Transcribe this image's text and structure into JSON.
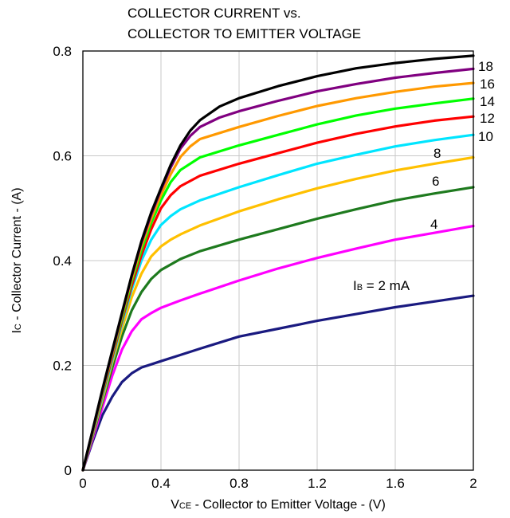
{
  "chart_data": {
    "type": "line",
    "title": [
      "COLLECTOR CURRENT vs.",
      "COLLECTOR TO EMITTER VOLTAGE"
    ],
    "xlabel": {
      "main": "V",
      "sub": "CE",
      "rest": " - Collector to Emitter Voltage - (V)"
    },
    "ylabel": {
      "main": "I",
      "sub": "C",
      "rest": " - Collector Current - (A)"
    },
    "xlim": [
      0,
      2
    ],
    "ylim": [
      0,
      0.8
    ],
    "xticks": [
      "0",
      "0.4",
      "0.8",
      "1.2",
      "1.6",
      "2"
    ],
    "xtick_values": [
      0,
      0.4,
      0.8,
      1.2,
      1.6,
      2
    ],
    "yticks": [
      "0",
      "0.2",
      "0.4",
      "0.6",
      "0.8"
    ],
    "ytick_values": [
      0,
      0.2,
      0.4,
      0.6,
      0.8
    ],
    "grid": true,
    "series": [
      {
        "name": "I_B = 2 mA",
        "label": {
          "main": "I",
          "sub": "B",
          "rest": " = 2 mA"
        },
        "color": "#1a1a80",
        "x": [
          0,
          0.05,
          0.1,
          0.15,
          0.2,
          0.25,
          0.3,
          0.35,
          0.4,
          0.5,
          0.6,
          0.8,
          1.0,
          1.2,
          1.4,
          1.6,
          1.8,
          2.0
        ],
        "y": [
          0,
          0.055,
          0.105,
          0.14,
          0.168,
          0.185,
          0.196,
          0.202,
          0.208,
          0.22,
          0.232,
          0.255,
          0.27,
          0.285,
          0.298,
          0.311,
          0.322,
          0.333
        ]
      },
      {
        "name": "4",
        "label": {
          "main": "4"
        },
        "color": "#ff00ff",
        "x": [
          0,
          0.05,
          0.1,
          0.15,
          0.2,
          0.25,
          0.3,
          0.35,
          0.4,
          0.5,
          0.6,
          0.8,
          1.0,
          1.2,
          1.4,
          1.6,
          1.8,
          2.0
        ],
        "y": [
          0,
          0.06,
          0.12,
          0.18,
          0.23,
          0.265,
          0.288,
          0.3,
          0.31,
          0.324,
          0.337,
          0.362,
          0.385,
          0.405,
          0.423,
          0.44,
          0.453,
          0.466
        ]
      },
      {
        "name": "6",
        "label": {
          "main": "6"
        },
        "color": "#1e7a1e",
        "x": [
          0,
          0.05,
          0.1,
          0.15,
          0.2,
          0.25,
          0.3,
          0.35,
          0.4,
          0.5,
          0.6,
          0.8,
          1.0,
          1.2,
          1.4,
          1.6,
          1.8,
          2.0
        ],
        "y": [
          0,
          0.065,
          0.13,
          0.195,
          0.255,
          0.305,
          0.34,
          0.365,
          0.382,
          0.403,
          0.418,
          0.44,
          0.46,
          0.48,
          0.498,
          0.515,
          0.528,
          0.54
        ]
      },
      {
        "name": "8",
        "label": {
          "main": "8"
        },
        "color": "#ffc000",
        "x": [
          0,
          0.05,
          0.1,
          0.15,
          0.2,
          0.25,
          0.3,
          0.35,
          0.4,
          0.45,
          0.5,
          0.6,
          0.8,
          1.0,
          1.2,
          1.4,
          1.6,
          1.8,
          2.0
        ],
        "y": [
          0,
          0.068,
          0.135,
          0.205,
          0.27,
          0.33,
          0.375,
          0.408,
          0.427,
          0.44,
          0.45,
          0.467,
          0.494,
          0.517,
          0.538,
          0.556,
          0.572,
          0.585,
          0.597
        ]
      },
      {
        "name": "10",
        "label": {
          "main": "10"
        },
        "color": "#00e5ff",
        "x": [
          0,
          0.05,
          0.1,
          0.15,
          0.2,
          0.25,
          0.3,
          0.35,
          0.4,
          0.45,
          0.5,
          0.6,
          0.8,
          1.0,
          1.2,
          1.4,
          1.6,
          1.8,
          2.0
        ],
        "y": [
          0,
          0.07,
          0.14,
          0.21,
          0.28,
          0.345,
          0.4,
          0.44,
          0.468,
          0.485,
          0.498,
          0.515,
          0.54,
          0.563,
          0.585,
          0.602,
          0.618,
          0.63,
          0.64
        ]
      },
      {
        "name": "12",
        "label": {
          "main": "12"
        },
        "color": "#ff0000",
        "x": [
          0,
          0.05,
          0.1,
          0.15,
          0.2,
          0.25,
          0.3,
          0.35,
          0.4,
          0.45,
          0.5,
          0.6,
          0.8,
          1.0,
          1.2,
          1.4,
          1.6,
          1.8,
          2.0
        ],
        "y": [
          0,
          0.072,
          0.145,
          0.215,
          0.285,
          0.352,
          0.41,
          0.46,
          0.5,
          0.525,
          0.542,
          0.562,
          0.585,
          0.605,
          0.625,
          0.642,
          0.656,
          0.667,
          0.675
        ]
      },
      {
        "name": "14",
        "label": {
          "main": "14"
        },
        "color": "#00ff00",
        "x": [
          0,
          0.05,
          0.1,
          0.15,
          0.2,
          0.25,
          0.3,
          0.35,
          0.4,
          0.45,
          0.5,
          0.6,
          0.8,
          1.0,
          1.2,
          1.4,
          1.6,
          1.8,
          2.0
        ],
        "y": [
          0,
          0.074,
          0.148,
          0.22,
          0.29,
          0.36,
          0.42,
          0.472,
          0.515,
          0.55,
          0.573,
          0.597,
          0.62,
          0.64,
          0.66,
          0.677,
          0.69,
          0.7,
          0.709
        ]
      },
      {
        "name": "16",
        "label": {
          "main": "16"
        },
        "color": "#ff9900",
        "x": [
          0,
          0.05,
          0.1,
          0.15,
          0.2,
          0.25,
          0.3,
          0.35,
          0.4,
          0.45,
          0.5,
          0.55,
          0.6,
          0.8,
          1.0,
          1.2,
          1.4,
          1.6,
          1.8,
          2.0
        ],
        "y": [
          0,
          0.075,
          0.15,
          0.222,
          0.295,
          0.365,
          0.428,
          0.48,
          0.525,
          0.565,
          0.598,
          0.618,
          0.632,
          0.655,
          0.676,
          0.695,
          0.71,
          0.722,
          0.732,
          0.739
        ]
      },
      {
        "name": "18",
        "label": {
          "main": "18"
        },
        "color": "#800080",
        "x": [
          0,
          0.05,
          0.1,
          0.15,
          0.2,
          0.25,
          0.3,
          0.35,
          0.4,
          0.45,
          0.5,
          0.55,
          0.6,
          0.7,
          0.8,
          1.0,
          1.2,
          1.4,
          1.6,
          1.8,
          2.0
        ],
        "y": [
          0,
          0.076,
          0.152,
          0.225,
          0.298,
          0.37,
          0.434,
          0.488,
          0.535,
          0.578,
          0.614,
          0.638,
          0.655,
          0.673,
          0.685,
          0.705,
          0.723,
          0.737,
          0.749,
          0.758,
          0.766
        ]
      },
      {
        "name": "",
        "label": null,
        "color": "#000000",
        "x": [
          0,
          0.05,
          0.1,
          0.15,
          0.2,
          0.25,
          0.3,
          0.35,
          0.4,
          0.45,
          0.5,
          0.55,
          0.6,
          0.7,
          0.8,
          1.0,
          1.2,
          1.4,
          1.6,
          1.8,
          2.0
        ],
        "y": [
          0,
          0.077,
          0.154,
          0.228,
          0.3,
          0.372,
          0.437,
          0.492,
          0.538,
          0.583,
          0.62,
          0.648,
          0.668,
          0.694,
          0.71,
          0.733,
          0.752,
          0.767,
          0.777,
          0.785,
          0.791
        ]
      }
    ]
  }
}
